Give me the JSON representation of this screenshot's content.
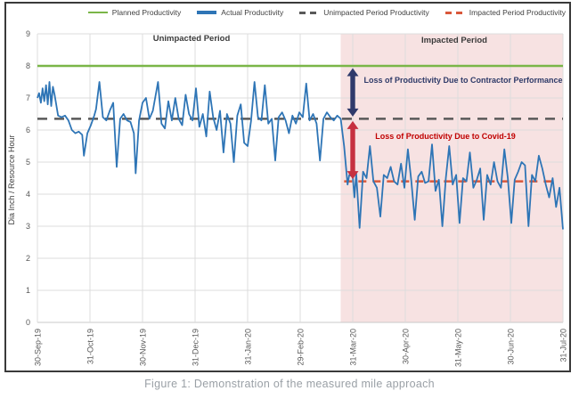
{
  "figure": {
    "caption": "Figure 1: Demonstration of the measured mile approach"
  },
  "chart_data": {
    "type": "line",
    "title": "",
    "xlabel": "",
    "ylabel": "Dia Inch / Resource Hour",
    "ylim": [
      0,
      9
    ],
    "yticks": [
      0,
      1,
      2,
      3,
      4,
      5,
      6,
      7,
      8,
      9
    ],
    "x_range_days": [
      0,
      305
    ],
    "grid": true,
    "legend_position": "top",
    "x_ticks": [
      {
        "day": 0,
        "label": "30-Sep-19"
      },
      {
        "day": 31,
        "label": "31-Oct-19"
      },
      {
        "day": 61,
        "label": "30-Nov-19"
      },
      {
        "day": 92,
        "label": "31-Dec-19"
      },
      {
        "day": 123,
        "label": "31-Jan-20"
      },
      {
        "day": 152,
        "label": "29-Feb-20"
      },
      {
        "day": 183,
        "label": "31-Mar-20"
      },
      {
        "day": 213,
        "label": "30-Apr-20"
      },
      {
        "day": 244,
        "label": "31-May-20"
      },
      {
        "day": 274,
        "label": "30-Jun-20"
      },
      {
        "day": 305,
        "label": "31-Jul-20"
      }
    ],
    "regions": [
      {
        "name": "Impacted Period",
        "start_day": 176,
        "end_day": 305,
        "color": "#f7e2e2"
      }
    ],
    "period_labels": [
      {
        "text": "Unimpacted Period"
      },
      {
        "text": "Impacted Period"
      }
    ],
    "legend": [
      {
        "label": "Planned Productivity",
        "color": "#7ab648",
        "dash": false,
        "weight": 2.5
      },
      {
        "label": "Actual Productivity",
        "color": "#2e75b6",
        "dash": false,
        "weight": 3.5
      },
      {
        "label": "Unimpacted Period Productivity",
        "color": "#595959",
        "dash": true,
        "weight": 3
      },
      {
        "label": "Impacted Period Productivity",
        "color": "#d9573a",
        "dash": true,
        "weight": 3
      }
    ],
    "series": [
      {
        "name": "Planned Productivity",
        "kind": "hline",
        "y": 8.0,
        "color": "#7ab648",
        "dash": null,
        "range_days": [
          0,
          305
        ],
        "width": 2.5
      },
      {
        "name": "Unimpacted Period Productivity",
        "kind": "hline",
        "y": 6.35,
        "color": "#595959",
        "dash": [
          11,
          8
        ],
        "range_days": [
          0,
          305
        ],
        "width": 2.5
      },
      {
        "name": "Impacted Period Productivity",
        "kind": "hline",
        "y": 4.4,
        "color": "#d9573a",
        "dash": [
          9,
          7
        ],
        "range_days": [
          178,
          302
        ],
        "width": 2.5
      },
      {
        "name": "Actual Productivity",
        "kind": "line",
        "color": "#2e75b6",
        "width": 1.8,
        "points": [
          [
            0,
            7.0
          ],
          [
            1,
            7.15
          ],
          [
            2,
            6.85
          ],
          [
            3,
            7.3
          ],
          [
            4,
            6.9
          ],
          [
            5,
            7.4
          ],
          [
            6,
            6.8
          ],
          [
            7,
            7.5
          ],
          [
            8,
            6.75
          ],
          [
            9,
            7.35
          ],
          [
            10,
            7.1
          ],
          [
            12,
            6.45
          ],
          [
            14,
            6.4
          ],
          [
            16,
            6.45
          ],
          [
            18,
            6.3
          ],
          [
            20,
            6.0
          ],
          [
            22,
            5.9
          ],
          [
            24,
            5.95
          ],
          [
            26,
            5.85
          ],
          [
            27,
            5.2
          ],
          [
            29,
            5.9
          ],
          [
            31,
            6.15
          ],
          [
            33,
            6.45
          ],
          [
            34,
            6.65
          ],
          [
            36,
            7.5
          ],
          [
            38,
            6.4
          ],
          [
            40,
            6.3
          ],
          [
            42,
            6.6
          ],
          [
            44,
            6.85
          ],
          [
            46,
            4.85
          ],
          [
            48,
            6.35
          ],
          [
            50,
            6.5
          ],
          [
            52,
            6.3
          ],
          [
            54,
            6.25
          ],
          [
            56,
            5.9
          ],
          [
            57,
            4.65
          ],
          [
            59,
            6.3
          ],
          [
            61,
            6.85
          ],
          [
            63,
            7.0
          ],
          [
            65,
            6.35
          ],
          [
            67,
            6.6
          ],
          [
            70,
            7.5
          ],
          [
            72,
            6.2
          ],
          [
            74,
            6.05
          ],
          [
            76,
            6.9
          ],
          [
            78,
            6.3
          ],
          [
            80,
            7.0
          ],
          [
            82,
            6.35
          ],
          [
            84,
            6.15
          ],
          [
            86,
            7.1
          ],
          [
            88,
            6.5
          ],
          [
            90,
            6.3
          ],
          [
            92,
            7.3
          ],
          [
            94,
            6.1
          ],
          [
            96,
            6.5
          ],
          [
            98,
            5.8
          ],
          [
            100,
            7.2
          ],
          [
            102,
            6.4
          ],
          [
            104,
            6.0
          ],
          [
            106,
            6.6
          ],
          [
            108,
            5.3
          ],
          [
            110,
            6.5
          ],
          [
            112,
            6.2
          ],
          [
            114,
            5.0
          ],
          [
            116,
            6.45
          ],
          [
            118,
            6.8
          ],
          [
            120,
            5.6
          ],
          [
            122,
            5.5
          ],
          [
            124,
            6.3
          ],
          [
            126,
            7.5
          ],
          [
            128,
            6.4
          ],
          [
            130,
            6.3
          ],
          [
            132,
            7.4
          ],
          [
            134,
            6.2
          ],
          [
            136,
            6.35
          ],
          [
            138,
            5.05
          ],
          [
            140,
            6.4
          ],
          [
            142,
            6.55
          ],
          [
            144,
            6.3
          ],
          [
            146,
            5.9
          ],
          [
            148,
            6.45
          ],
          [
            150,
            6.2
          ],
          [
            152,
            6.55
          ],
          [
            154,
            6.4
          ],
          [
            156,
            7.45
          ],
          [
            158,
            6.3
          ],
          [
            160,
            6.5
          ],
          [
            162,
            6.2
          ],
          [
            164,
            5.05
          ],
          [
            166,
            6.35
          ],
          [
            168,
            6.55
          ],
          [
            170,
            6.4
          ],
          [
            172,
            6.3
          ],
          [
            174,
            6.45
          ],
          [
            176,
            6.35
          ],
          [
            178,
            5.5
          ],
          [
            180,
            4.3
          ],
          [
            181,
            4.6
          ],
          [
            183,
            4.55
          ],
          [
            184,
            3.9
          ],
          [
            185,
            4.65
          ],
          [
            187,
            2.95
          ],
          [
            189,
            4.7
          ],
          [
            191,
            4.5
          ],
          [
            193,
            5.5
          ],
          [
            195,
            4.4
          ],
          [
            197,
            4.2
          ],
          [
            199,
            3.3
          ],
          [
            201,
            4.6
          ],
          [
            203,
            4.5
          ],
          [
            205,
            4.85
          ],
          [
            207,
            4.4
          ],
          [
            209,
            4.3
          ],
          [
            211,
            4.95
          ],
          [
            213,
            4.2
          ],
          [
            215,
            5.4
          ],
          [
            217,
            4.4
          ],
          [
            219,
            3.2
          ],
          [
            221,
            4.55
          ],
          [
            223,
            4.7
          ],
          [
            225,
            4.35
          ],
          [
            227,
            4.4
          ],
          [
            229,
            5.55
          ],
          [
            231,
            4.1
          ],
          [
            233,
            4.45
          ],
          [
            235,
            3.0
          ],
          [
            237,
            4.5
          ],
          [
            239,
            5.5
          ],
          [
            241,
            4.3
          ],
          [
            243,
            4.6
          ],
          [
            245,
            3.1
          ],
          [
            247,
            4.5
          ],
          [
            249,
            4.4
          ],
          [
            251,
            5.3
          ],
          [
            253,
            4.2
          ],
          [
            255,
            4.45
          ],
          [
            257,
            4.8
          ],
          [
            259,
            3.2
          ],
          [
            261,
            4.6
          ],
          [
            263,
            4.3
          ],
          [
            265,
            5.0
          ],
          [
            267,
            4.4
          ],
          [
            269,
            4.2
          ],
          [
            271,
            5.4
          ],
          [
            273,
            4.5
          ],
          [
            275,
            3.1
          ],
          [
            277,
            4.45
          ],
          [
            279,
            4.7
          ],
          [
            281,
            5.0
          ],
          [
            283,
            4.9
          ],
          [
            285,
            3.0
          ],
          [
            287,
            4.6
          ],
          [
            289,
            4.4
          ],
          [
            291,
            5.2
          ],
          [
            293,
            4.8
          ],
          [
            295,
            4.3
          ],
          [
            297,
            3.9
          ],
          [
            299,
            4.5
          ],
          [
            301,
            3.6
          ],
          [
            303,
            4.2
          ],
          [
            305,
            2.9
          ]
        ]
      }
    ],
    "arrows": [
      {
        "x_day": 183,
        "from_y": 8.0,
        "to_y": 6.35,
        "color": "#2f3a6b"
      },
      {
        "x_day": 183,
        "from_y": 6.35,
        "to_y": 4.4,
        "color": "#c63040"
      }
    ],
    "annotations": [
      {
        "text": "Loss of Productivity Due to Contractor Performance",
        "color": "#2e3a68"
      },
      {
        "text": "Loss of Productivity Due to Covid-19",
        "color": "#c00000"
      }
    ]
  }
}
